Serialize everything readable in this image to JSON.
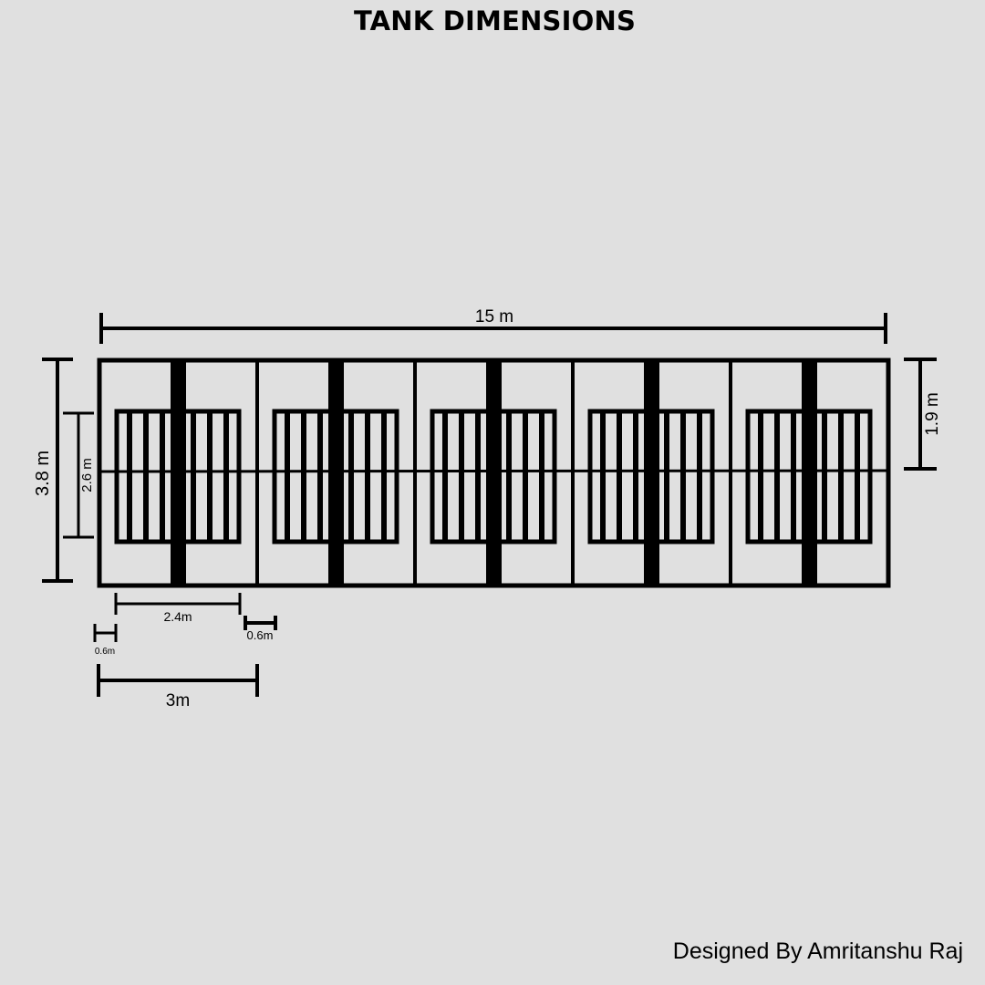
{
  "title": "TANK DIMENSIONS",
  "credit": "Designed By Amritanshu Raj",
  "tank": {
    "modules": 5
  },
  "dimensions": {
    "total_length": "15 m",
    "total_width": "3.8 m",
    "inner_height": "2.6 m",
    "half_width": "1.9 m",
    "inner_length": "2.4m",
    "end_gap_right": "0.6m",
    "end_gap_left": "0.6m",
    "module_length": "3m"
  }
}
